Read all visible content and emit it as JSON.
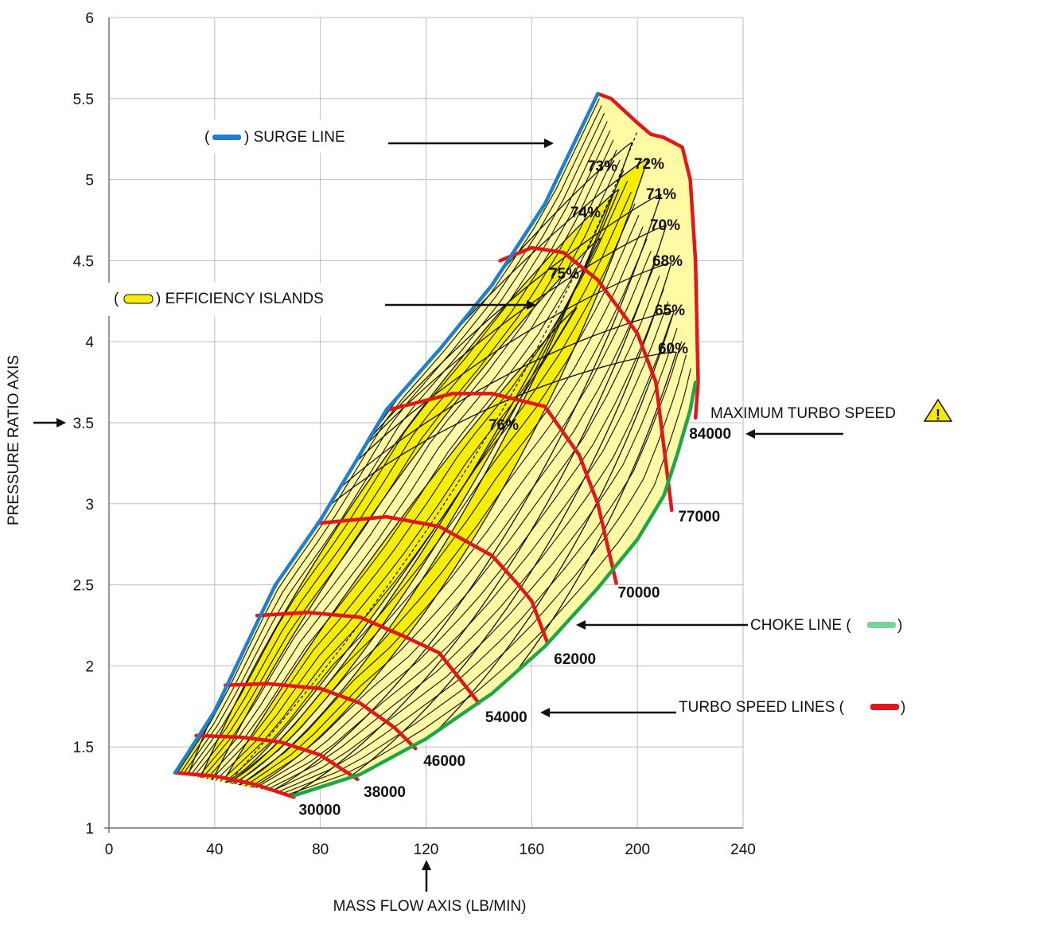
{
  "chart_data": {
    "type": "compressor-map",
    "title": "",
    "xlabel": "MASS FLOW AXIS (LB/MIN)",
    "ylabel": "PRESSURE RATIO AXIS",
    "xlim": [
      0,
      240
    ],
    "ylim": [
      1,
      6
    ],
    "x_ticks": [
      0,
      40,
      80,
      120,
      160,
      200,
      240
    ],
    "x_tick_labels": [
      "0",
      "40",
      "80",
      "120",
      "160",
      "200",
      "240"
    ],
    "y_ticks": [
      1,
      1.5,
      2,
      2.5,
      3,
      3.5,
      4,
      4.5,
      5,
      5.5,
      6
    ],
    "y_tick_labels": [
      "1",
      "1.5",
      "2",
      "2.5",
      "3",
      "3.5",
      "4",
      "4.5",
      "5",
      "5.5",
      "6"
    ],
    "grid": true,
    "colors": {
      "surge": "#1f7fd1",
      "choke": "#1fa64a",
      "speed": "#e3171b",
      "island_fill": "#fffaa3",
      "island_band": "#f5ee00"
    },
    "surge_line": {
      "name": "SURGE LINE",
      "x": [
        25,
        40,
        57,
        63,
        80,
        93,
        105,
        125,
        145,
        165,
        185
      ],
      "y": [
        1.34,
        1.72,
        2.3,
        2.5,
        2.9,
        3.25,
        3.58,
        3.95,
        4.35,
        4.85,
        5.53
      ]
    },
    "choke_line": {
      "name": "CHOKE LINE",
      "x": [
        70,
        95,
        120,
        145,
        165,
        185,
        200,
        210,
        215,
        220,
        222
      ],
      "y": [
        1.2,
        1.33,
        1.55,
        1.83,
        2.12,
        2.48,
        2.78,
        3.05,
        3.3,
        3.58,
        3.75
      ]
    },
    "speed_lines": [
      {
        "label": "30000",
        "x": [
          25,
          40,
          55,
          70
        ],
        "y": [
          1.34,
          1.32,
          1.27,
          1.19
        ]
      },
      {
        "label": "38000",
        "x": [
          33,
          50,
          65,
          80,
          94
        ],
        "y": [
          1.57,
          1.56,
          1.53,
          1.45,
          1.3
        ]
      },
      {
        "label": "46000",
        "x": [
          44,
          60,
          80,
          95,
          108,
          116
        ],
        "y": [
          1.88,
          1.89,
          1.86,
          1.77,
          1.62,
          1.49
        ]
      },
      {
        "label": "54000",
        "x": [
          56,
          75,
          95,
          112,
          125,
          140
        ],
        "y": [
          2.31,
          2.33,
          2.3,
          2.18,
          2.08,
          1.77
        ]
      },
      {
        "label": "62000",
        "x": [
          79,
          105,
          125,
          145,
          155,
          160,
          166
        ],
        "y": [
          2.88,
          2.92,
          2.86,
          2.68,
          2.5,
          2.4,
          2.14
        ]
      },
      {
        "label": "70000",
        "x": [
          106,
          130,
          145,
          165,
          178,
          185,
          192
        ],
        "y": [
          3.58,
          3.68,
          3.68,
          3.6,
          3.3,
          3.0,
          2.51
        ]
      },
      {
        "label": "77000",
        "x": [
          148,
          160,
          172,
          185,
          200,
          207,
          213
        ],
        "y": [
          4.5,
          4.58,
          4.55,
          4.38,
          4.05,
          3.75,
          2.96
        ]
      },
      {
        "label": "84000",
        "x": [
          185,
          190,
          200,
          205,
          210,
          217,
          220,
          222,
          223,
          222
        ],
        "y": [
          5.53,
          5.5,
          5.35,
          5.28,
          5.26,
          5.2,
          5.0,
          4.5,
          3.75,
          3.53
        ]
      }
    ],
    "efficiency_islands": [
      {
        "label": "76%",
        "peak_x": 176,
        "peak_y": 4.22
      },
      {
        "label": "75%",
        "peak_x": 185,
        "peak_y": 4.65
      },
      {
        "label": "74%",
        "peak_x": 192,
        "peak_y": 4.95
      },
      {
        "label": "73%",
        "peak_x": 197,
        "peak_y": 5.24
      },
      {
        "label": "72%",
        "peak_x": 203,
        "peak_y": 5.14
      },
      {
        "label": "71%",
        "peak_x": 208,
        "peak_y": 4.92
      },
      {
        "label": "70%",
        "peak_x": 210,
        "peak_y": 4.73
      },
      {
        "label": "68%",
        "peak_x": 212,
        "peak_y": 4.5
      },
      {
        "label": "65%",
        "peak_x": 213,
        "peak_y": 4.2
      },
      {
        "label": "60%",
        "peak_x": 214,
        "peak_y": 3.95
      }
    ]
  },
  "annotations": {
    "surge": {
      "open": "(",
      "close": ") SURGE LINE"
    },
    "efficiency": {
      "open": "(",
      "close": ") EFFICIENCY ISLANDS"
    },
    "max_speed": "MAXIMUM TURBO SPEED",
    "choke": {
      "text": "CHOKE LINE (",
      "close": ")"
    },
    "speed": {
      "text": "TURBO SPEED LINES (",
      "close": ")"
    },
    "warning_glyph": "!"
  },
  "axis_titles": {
    "x": "MASS FLOW AXIS (LB/MIN)",
    "y": "PRESSURE RATIO AXIS"
  }
}
